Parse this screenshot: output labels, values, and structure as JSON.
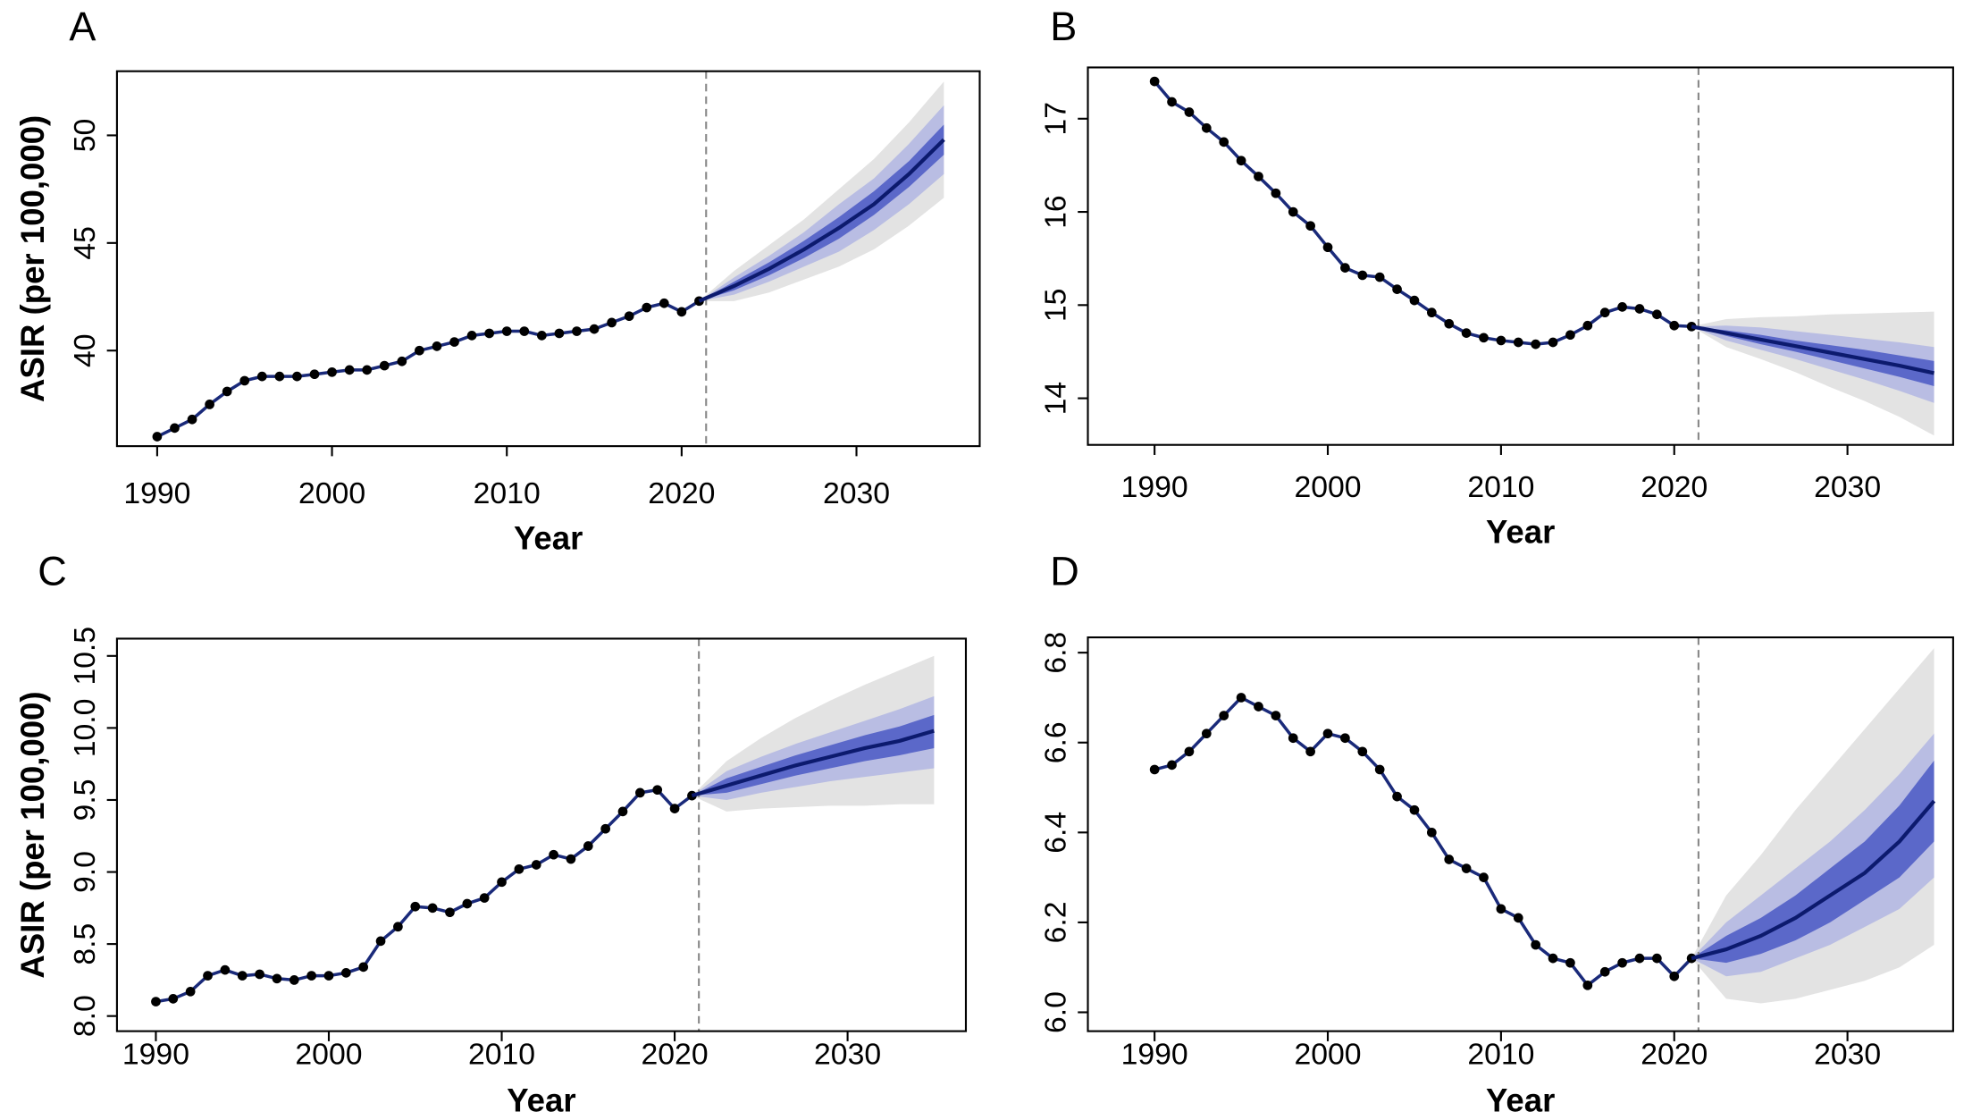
{
  "chart_data": [
    {
      "type": "line",
      "label": "A",
      "ylabel": "ASIR (per 100,000)",
      "xlabel": "Year",
      "x": [
        1990,
        1991,
        1992,
        1993,
        1994,
        1995,
        1996,
        1997,
        1998,
        1999,
        2000,
        2001,
        2002,
        2003,
        2004,
        2005,
        2006,
        2007,
        2008,
        2009,
        2010,
        2011,
        2012,
        2013,
        2014,
        2015,
        2016,
        2017,
        2018,
        2019,
        2020,
        2021
      ],
      "values": [
        36.0,
        36.4,
        36.8,
        37.5,
        38.1,
        38.6,
        38.8,
        38.8,
        38.8,
        38.9,
        39.0,
        39.1,
        39.1,
        39.3,
        39.5,
        40.0,
        40.2,
        40.4,
        40.7,
        40.8,
        40.9,
        40.9,
        40.7,
        40.8,
        40.9,
        41.0,
        41.3,
        41.6,
        42.0,
        42.2,
        41.8,
        42.3
      ],
      "color": "#000000",
      "projection": {
        "x": [
          2021,
          2023,
          2025,
          2027,
          2029,
          2031,
          2033,
          2035
        ],
        "values": [
          42.3,
          43.0,
          43.8,
          44.7,
          45.7,
          46.8,
          48.2,
          49.8
        ],
        "color": "#0c1a6e"
      },
      "bands": [
        {
          "color": "#e3e3e3",
          "lower": [
            42.3,
            42.3,
            42.7,
            43.3,
            43.9,
            44.7,
            45.8,
            47.1
          ],
          "upper": [
            42.3,
            43.7,
            44.9,
            46.1,
            47.5,
            48.9,
            50.6,
            52.5
          ]
        },
        {
          "color": "#b9bde3",
          "lower": [
            42.3,
            42.6,
            43.2,
            43.9,
            44.6,
            45.6,
            46.8,
            48.2
          ],
          "upper": [
            42.3,
            43.4,
            44.4,
            45.5,
            46.8,
            48.0,
            49.6,
            51.4
          ]
        },
        {
          "color": "#5b68c9",
          "lower": [
            42.3,
            42.8,
            43.5,
            44.3,
            45.2,
            46.3,
            47.6,
            49.1
          ],
          "upper": [
            42.3,
            43.2,
            44.1,
            45.1,
            46.2,
            47.4,
            48.8,
            50.5
          ]
        }
      ],
      "vline": 2021.4,
      "xlim": [
        1987.7,
        2037.05
      ],
      "xticks": [
        1990,
        2000,
        2010,
        2020,
        2030
      ],
      "ylim": [
        35.56,
        52.98
      ],
      "yticks": [
        40,
        45,
        50
      ]
    },
    {
      "type": "line",
      "label": "B",
      "xlabel": "Year",
      "x": [
        1990,
        1991,
        1992,
        1993,
        1994,
        1995,
        1996,
        1997,
        1998,
        1999,
        2000,
        2001,
        2002,
        2003,
        2004,
        2005,
        2006,
        2007,
        2008,
        2009,
        2010,
        2011,
        2012,
        2013,
        2014,
        2015,
        2016,
        2017,
        2018,
        2019,
        2020,
        2021
      ],
      "values": [
        17.4,
        17.18,
        17.07,
        16.9,
        16.75,
        16.55,
        16.38,
        16.2,
        16.0,
        15.85,
        15.62,
        15.4,
        15.32,
        15.3,
        15.17,
        15.05,
        14.92,
        14.8,
        14.7,
        14.65,
        14.62,
        14.6,
        14.58,
        14.6,
        14.68,
        14.78,
        14.92,
        14.98,
        14.96,
        14.9,
        14.78,
        14.77
      ],
      "color": "#000000",
      "projection": {
        "x": [
          2021,
          2023,
          2025,
          2027,
          2029,
          2031,
          2033,
          2035
        ],
        "values": [
          14.77,
          14.7,
          14.63,
          14.56,
          14.49,
          14.42,
          14.35,
          14.27
        ],
        "color": "#0c1a6e"
      },
      "bands": [
        {
          "color": "#e3e3e3",
          "lower": [
            14.77,
            14.55,
            14.42,
            14.28,
            14.12,
            13.97,
            13.8,
            13.6
          ],
          "upper": [
            14.77,
            14.85,
            14.87,
            14.88,
            14.9,
            14.91,
            14.92,
            14.93
          ]
        },
        {
          "color": "#b9bde3",
          "lower": [
            14.77,
            14.62,
            14.52,
            14.42,
            14.31,
            14.2,
            14.08,
            13.95
          ],
          "upper": [
            14.77,
            14.78,
            14.76,
            14.72,
            14.68,
            14.64,
            14.6,
            14.55
          ]
        },
        {
          "color": "#5b68c9",
          "lower": [
            14.77,
            14.67,
            14.58,
            14.5,
            14.41,
            14.32,
            14.23,
            14.13
          ],
          "upper": [
            14.77,
            14.73,
            14.68,
            14.62,
            14.57,
            14.52,
            14.46,
            14.4
          ]
        }
      ],
      "vline": 2021.4,
      "xlim": [
        1986.15,
        2036.1
      ],
      "xticks": [
        1990,
        2000,
        2010,
        2020,
        2030
      ],
      "ylim": [
        13.5,
        17.55
      ],
      "yticks": [
        14,
        15,
        16,
        17
      ]
    },
    {
      "type": "line",
      "label": "C",
      "ylabel": "ASIR (per 100,000)",
      "xlabel": "Year",
      "x": [
        1990,
        1991,
        1992,
        1993,
        1994,
        1995,
        1996,
        1997,
        1998,
        1999,
        2000,
        2001,
        2002,
        2003,
        2004,
        2005,
        2006,
        2007,
        2008,
        2009,
        2010,
        2011,
        2012,
        2013,
        2014,
        2015,
        2016,
        2017,
        2018,
        2019,
        2020,
        2021
      ],
      "values": [
        8.1,
        8.12,
        8.17,
        8.28,
        8.32,
        8.28,
        8.29,
        8.26,
        8.25,
        8.28,
        8.28,
        8.3,
        8.34,
        8.52,
        8.62,
        8.76,
        8.75,
        8.72,
        8.78,
        8.82,
        8.93,
        9.02,
        9.05,
        9.12,
        9.09,
        9.18,
        9.3,
        9.42,
        9.55,
        9.57,
        9.44,
        9.53
      ],
      "color": "#000000",
      "projection": {
        "x": [
          2021,
          2023,
          2025,
          2027,
          2029,
          2031,
          2033,
          2035
        ],
        "values": [
          9.53,
          9.6,
          9.67,
          9.74,
          9.8,
          9.86,
          9.91,
          9.98
        ],
        "color": "#0c1a6e"
      },
      "bands": [
        {
          "color": "#e3e3e3",
          "lower": [
            9.53,
            9.42,
            9.44,
            9.45,
            9.46,
            9.46,
            9.47,
            9.47
          ],
          "upper": [
            9.53,
            9.77,
            9.93,
            10.07,
            10.19,
            10.3,
            10.4,
            10.5
          ]
        },
        {
          "color": "#b9bde3",
          "lower": [
            9.53,
            9.5,
            9.55,
            9.59,
            9.63,
            9.66,
            9.69,
            9.72
          ],
          "upper": [
            9.53,
            9.7,
            9.8,
            9.89,
            9.97,
            10.05,
            10.13,
            10.22
          ]
        },
        {
          "color": "#5b68c9",
          "lower": [
            9.53,
            9.55,
            9.61,
            9.67,
            9.72,
            9.77,
            9.81,
            9.86
          ],
          "upper": [
            9.53,
            9.65,
            9.73,
            9.81,
            9.88,
            9.95,
            10.01,
            10.09
          ]
        }
      ],
      "vline": 2021.4,
      "xlim": [
        1987.75,
        2036.84
      ],
      "xticks": [
        1990,
        2000,
        2010,
        2020,
        2030
      ],
      "ylim": [
        7.895,
        10.62
      ],
      "yticks": [
        {
          "value": 8,
          "label": "8.0"
        },
        8.5,
        {
          "value": 9,
          "label": "9.0"
        },
        9.5,
        {
          "value": 10,
          "label": "10.0"
        },
        10.5
      ]
    },
    {
      "type": "line",
      "label": "D",
      "xlabel": "Year",
      "x": [
        1990,
        1991,
        1992,
        1993,
        1994,
        1995,
        1996,
        1997,
        1998,
        1999,
        2000,
        2001,
        2002,
        2003,
        2004,
        2005,
        2006,
        2007,
        2008,
        2009,
        2010,
        2011,
        2012,
        2013,
        2014,
        2015,
        2016,
        2017,
        2018,
        2019,
        2020,
        2021
      ],
      "values": [
        6.54,
        6.55,
        6.58,
        6.62,
        6.66,
        6.7,
        6.68,
        6.66,
        6.61,
        6.58,
        6.62,
        6.61,
        6.58,
        6.54,
        6.48,
        6.45,
        6.4,
        6.34,
        6.32,
        6.3,
        6.23,
        6.21,
        6.15,
        6.12,
        6.11,
        6.06,
        6.09,
        6.11,
        6.12,
        6.12,
        6.08,
        6.12
      ],
      "color": "#000000",
      "projection": {
        "x": [
          2021,
          2023,
          2025,
          2027,
          2029,
          2031,
          2033,
          2035
        ],
        "values": [
          6.12,
          6.14,
          6.17,
          6.21,
          6.26,
          6.31,
          6.38,
          6.47
        ],
        "color": "#0c1a6e"
      },
      "bands": [
        {
          "color": "#e3e3e3",
          "lower": [
            6.12,
            6.03,
            6.02,
            6.03,
            6.05,
            6.07,
            6.1,
            6.15
          ],
          "upper": [
            6.12,
            6.26,
            6.35,
            6.45,
            6.54,
            6.63,
            6.72,
            6.81
          ]
        },
        {
          "color": "#b9bde3",
          "lower": [
            6.12,
            6.08,
            6.09,
            6.12,
            6.15,
            6.19,
            6.23,
            6.3
          ],
          "upper": [
            6.12,
            6.2,
            6.26,
            6.32,
            6.38,
            6.45,
            6.53,
            6.62
          ]
        },
        {
          "color": "#5b68c9",
          "lower": [
            6.12,
            6.11,
            6.13,
            6.16,
            6.2,
            6.25,
            6.3,
            6.38
          ],
          "upper": [
            6.12,
            6.17,
            6.21,
            6.26,
            6.32,
            6.38,
            6.46,
            6.56
          ]
        }
      ],
      "vline": 2021.4,
      "xlim": [
        1986.15,
        2036.1
      ],
      "xticks": [
        1990,
        2000,
        2010,
        2020,
        2030
      ],
      "ylim": [
        5.958,
        6.834
      ],
      "yticks": [
        {
          "value": 6,
          "label": "6.0"
        },
        6.2,
        6.4,
        6.6,
        6.8
      ]
    }
  ]
}
